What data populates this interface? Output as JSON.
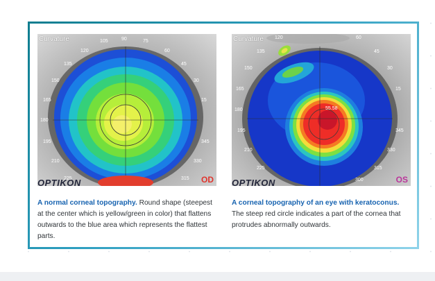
{
  "panels": [
    {
      "curvature_label": "Curvature",
      "brand": "OPTIKON",
      "eye": "OD",
      "eye_color": "#e0332c",
      "degrees": [
        "90",
        "105",
        "75",
        "120",
        "60",
        "135",
        "45",
        "150",
        "30",
        "165",
        "15",
        "180",
        "195",
        "345",
        "210",
        "330",
        "225",
        "315"
      ],
      "caption_highlight": "A normal corneal topography.",
      "caption_rest": " Round shape (steepest at the center which is yellow/green in color) that flattens outwards to the blue area which represents the flattest parts."
    },
    {
      "curvature_label": "Curvature",
      "brand": "OPTIKON",
      "eye": "OS",
      "eye_color": "#b9359a",
      "center_value": "55.58",
      "degrees": [
        "120",
        "60",
        "135",
        "45",
        "150",
        "30",
        "165",
        "15",
        "180",
        "195",
        "345",
        "210",
        "330",
        "225",
        "315",
        "300"
      ],
      "caption_highlight": "A corneal topography of an eye with keratoconus.",
      "caption_rest": " The steep red circle indicates a part of the cornea that protrudes abnormally outwards."
    }
  ],
  "colors": {
    "frame_start": "#0f7d8f",
    "frame_end": "#8fd3ea",
    "highlight": "#1763b0",
    "text": "#2f3438"
  }
}
